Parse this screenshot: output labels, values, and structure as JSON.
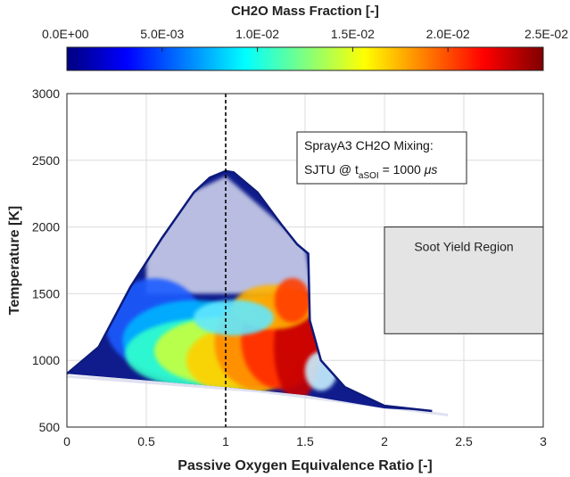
{
  "chart_data": {
    "type": "scatter",
    "xlabel": "Passive Oxygen Equivalence Ratio [-]",
    "ylabel": "Temperature [K]",
    "xlim": [
      0,
      3
    ],
    "ylim": [
      500,
      3000
    ],
    "xticks": [
      "0",
      "0.5",
      "1",
      "1.5",
      "2",
      "2.5",
      "3"
    ],
    "yticks": [
      "500",
      "1000",
      "1500",
      "2000",
      "2500",
      "3000"
    ],
    "grid": true,
    "colorbar": {
      "title": "CH2O Mass Fraction [-]",
      "ticks": [
        "0.0E+00",
        "5.0E-03",
        "1.0E-02",
        "1.5E-02",
        "2.0E-02",
        "2.5E-02"
      ],
      "range": [
        0,
        0.025
      ],
      "colormap": "jet",
      "position": "top"
    },
    "vertical_line": {
      "x": 1,
      "style": "dashed",
      "color": "#000000"
    },
    "annotation": {
      "line1": "SprayA3 CH2O Mixing:",
      "line2_prefix": "SJTU @ t",
      "line2_sub": "aSOI",
      "line2_suffix": " = 1000 ",
      "line2_unit": "μs"
    },
    "region": {
      "label": "Soot Yield Region",
      "x_range": [
        2.0,
        3.0
      ],
      "y_range": [
        1200,
        2000
      ],
      "fill": "#e4e4e4"
    },
    "envelope": {
      "upper": [
        [
          0,
          900
        ],
        [
          0.2,
          1100
        ],
        [
          0.4,
          1550
        ],
        [
          0.6,
          1920
        ],
        [
          0.8,
          2260
        ],
        [
          0.9,
          2370
        ],
        [
          1.0,
          2420
        ],
        [
          1.05,
          2410
        ],
        [
          1.2,
          2260
        ],
        [
          1.35,
          2020
        ],
        [
          1.45,
          1870
        ],
        [
          1.52,
          1800
        ],
        [
          1.53,
          1300
        ],
        [
          1.6,
          1000
        ],
        [
          1.75,
          800
        ],
        [
          2.0,
          660
        ],
        [
          2.3,
          620
        ]
      ],
      "lower": [
        [
          0,
          900
        ],
        [
          0.5,
          850
        ],
        [
          1.0,
          800
        ],
        [
          1.5,
          740
        ],
        [
          2.0,
          640
        ],
        [
          2.3,
          620
        ]
      ]
    },
    "series": [
      {
        "ch2o_mass_fraction_peak": 0.025,
        "peak_location_phi": [
          1.1,
          1.5
        ],
        "peak_location_T": [
          950,
          1350
        ]
      }
    ]
  }
}
